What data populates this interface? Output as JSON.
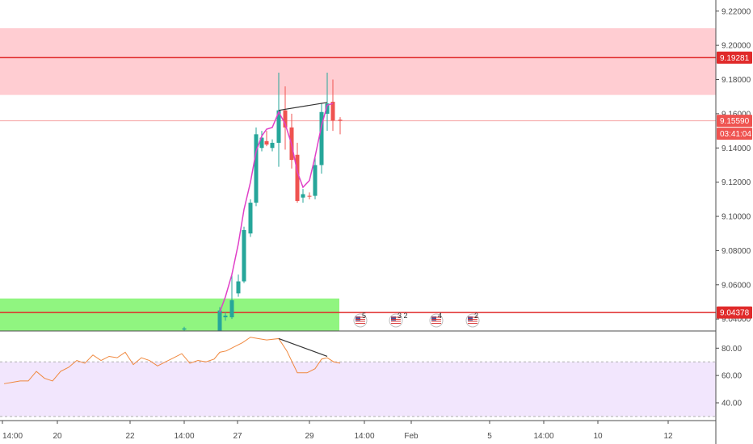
{
  "chart_data": {
    "type": "candlestick",
    "price_axis": {
      "ticks": [
        "9.22000",
        "9.20000",
        "9.18000",
        "9.16000",
        "9.14000",
        "9.12000",
        "9.10000",
        "9.08000",
        "9.06000",
        "9.04000"
      ],
      "range": [
        9.033,
        9.2265
      ]
    },
    "time_axis": {
      "ticks": [
        "14:00",
        "20",
        "22",
        "14:00",
        "27",
        "29",
        "14:00",
        "Feb",
        "5",
        "14:00",
        "10",
        "12"
      ]
    },
    "resistance_zone": {
      "low": 9.171,
      "high": 9.21,
      "color": "#ffcdd2"
    },
    "support_zone": {
      "low": 9.033,
      "high": 9.052,
      "color": "#90f580"
    },
    "horizontal_lines": [
      {
        "price": 9.19281,
        "label": "9.19281",
        "color": "#e02a2a"
      },
      {
        "price": 9.04378,
        "label": "9.04378",
        "color": "#e02a2a"
      }
    ],
    "current_price": {
      "price": 9.1559,
      "label": "9.15590",
      "countdown": "03:41:04",
      "color": "#ef5350"
    },
    "candles": [
      {
        "t": 228,
        "o": 9.0338,
        "h": 9.0355,
        "l": 9.033,
        "c": 9.0345
      },
      {
        "t": 272,
        "o": 9.033,
        "h": 9.047,
        "l": 9.033,
        "c": 9.045
      },
      {
        "t": 279,
        "o": 9.041,
        "h": 9.044,
        "l": 9.039,
        "c": 9.042
      },
      {
        "t": 287,
        "o": 9.041,
        "h": 9.067,
        "l": 9.04,
        "c": 9.051
      },
      {
        "t": 295,
        "o": 9.055,
        "h": 9.066,
        "l": 9.053,
        "c": 9.062
      },
      {
        "t": 302,
        "o": 9.062,
        "h": 9.094,
        "l": 9.061,
        "c": 9.092
      },
      {
        "t": 310,
        "o": 9.09,
        "h": 9.11,
        "l": 9.088,
        "c": 9.108
      },
      {
        "t": 317,
        "o": 9.108,
        "h": 9.152,
        "l": 9.106,
        "c": 9.148
      },
      {
        "t": 324,
        "o": 9.14,
        "h": 9.15,
        "l": 9.138,
        "c": 9.146
      },
      {
        "t": 330,
        "o": 9.144,
        "h": 9.15,
        "l": 9.141,
        "c": 9.142
      },
      {
        "t": 337,
        "o": 9.14,
        "h": 9.145,
        "l": 9.138,
        "c": 9.143
      },
      {
        "t": 345,
        "o": 9.143,
        "h": 9.184,
        "l": 9.129,
        "c": 9.162
      },
      {
        "t": 353,
        "o": 9.162,
        "h": 9.176,
        "l": 9.139,
        "c": 9.152
      },
      {
        "t": 361,
        "o": 9.152,
        "h": 9.16,
        "l": 9.128,
        "c": 9.133
      },
      {
        "t": 368,
        "o": 9.136,
        "h": 9.143,
        "l": 9.108,
        "c": 9.109
      },
      {
        "t": 375,
        "o": 9.111,
        "h": 9.116,
        "l": 9.108,
        "c": 9.113
      },
      {
        "t": 383,
        "o": 9.112,
        "h": 9.114,
        "l": 9.11,
        "c": 9.1115
      },
      {
        "t": 390,
        "o": 9.112,
        "h": 9.136,
        "l": 9.11,
        "c": 9.13
      },
      {
        "t": 398,
        "o": 9.13,
        "h": 9.166,
        "l": 9.125,
        "c": 9.161
      },
      {
        "t": 405,
        "o": 9.16,
        "h": 9.184,
        "l": 9.15,
        "c": 9.166
      },
      {
        "t": 412,
        "o": 9.167,
        "h": 9.18,
        "l": 9.15,
        "c": 9.156
      },
      {
        "t": 421,
        "o": 9.1565,
        "h": 9.158,
        "l": 9.148,
        "c": 9.1559
      }
    ],
    "moving_average": [
      [
        272,
        9.044
      ],
      [
        279,
        9.053
      ],
      [
        287,
        9.066
      ],
      [
        295,
        9.084
      ],
      [
        302,
        9.104
      ],
      [
        310,
        9.12
      ],
      [
        317,
        9.138
      ],
      [
        324,
        9.147
      ],
      [
        330,
        9.151
      ],
      [
        337,
        9.152
      ],
      [
        345,
        9.161
      ],
      [
        353,
        9.154
      ],
      [
        361,
        9.142
      ],
      [
        368,
        9.126
      ],
      [
        375,
        9.117
      ],
      [
        383,
        9.121
      ],
      [
        390,
        9.135
      ],
      [
        398,
        9.153
      ],
      [
        405,
        9.165
      ],
      [
        412,
        9.166
      ]
    ],
    "price_trendline": [
      [
        345,
        9.162
      ],
      [
        405,
        9.1666
      ]
    ],
    "rsi": {
      "axis_ticks": [
        "80.00",
        "60.00",
        "40.00"
      ],
      "range": [
        27,
        92
      ],
      "band": [
        30,
        70
      ],
      "values": [
        [
          5,
          54
        ],
        [
          15,
          55
        ],
        [
          25,
          56
        ],
        [
          35,
          56
        ],
        [
          45,
          63
        ],
        [
          55,
          58
        ],
        [
          65,
          56
        ],
        [
          75,
          63
        ],
        [
          85,
          66
        ],
        [
          95,
          71
        ],
        [
          105,
          69
        ],
        [
          115,
          75
        ],
        [
          125,
          71
        ],
        [
          135,
          74
        ],
        [
          145,
          73
        ],
        [
          155,
          77
        ],
        [
          165,
          68
        ],
        [
          175,
          73
        ],
        [
          185,
          71
        ],
        [
          195,
          67
        ],
        [
          205,
          70
        ],
        [
          215,
          73
        ],
        [
          225,
          76
        ],
        [
          235,
          69
        ],
        [
          245,
          71
        ],
        [
          255,
          70
        ],
        [
          265,
          72
        ],
        [
          272,
          77
        ],
        [
          280,
          78
        ],
        [
          290,
          81
        ],
        [
          300,
          84
        ],
        [
          310,
          88
        ],
        [
          320,
          87
        ],
        [
          330,
          86
        ],
        [
          345,
          87
        ],
        [
          355,
          78
        ],
        [
          368,
          62
        ],
        [
          380,
          62
        ],
        [
          390,
          65
        ],
        [
          398,
          72
        ],
        [
          405,
          73
        ],
        [
          413,
          70
        ],
        [
          421,
          69
        ]
      ],
      "divergence_line": [
        [
          345,
          87
        ],
        [
          405,
          74
        ]
      ]
    },
    "event_badges": [
      {
        "x": 446,
        "label": "5"
      },
      {
        "x": 490,
        "label": "3 2"
      },
      {
        "x": 540,
        "label": "4"
      },
      {
        "x": 585,
        "label": "2"
      }
    ]
  }
}
